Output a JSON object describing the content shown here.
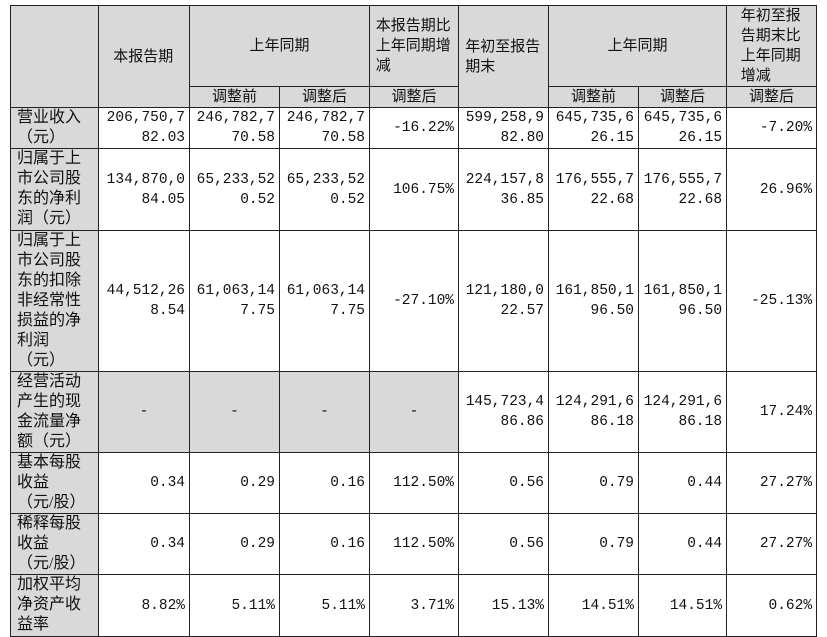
{
  "header": {
    "blank": "",
    "current_period": "本报告期",
    "prior_year_same_period": "上年同期",
    "change_vs_prior": "本报告期比上年同期增减",
    "ytd": "年初至报告期末",
    "prior_year_same_period_ytd": "上年同期",
    "ytd_change": "年初至报告期末比上年同期增减",
    "sub": [
      "调整前",
      "调整后",
      "调整后",
      "调整前",
      "调整后",
      "调整后"
    ]
  },
  "rows": [
    {
      "label": "营业收入（元）",
      "values": [
        "206,750,782.03",
        "246,782,770.58",
        "246,782,770.58",
        "-16.22%",
        "599,258,982.80",
        "645,735,626.15",
        "645,735,626.15",
        "-7.20%"
      ]
    },
    {
      "label": "归属于上市公司股东的净利润（元）",
      "values": [
        "134,870,084.05",
        "65,233,520.52",
        "65,233,520.52",
        "106.75%",
        "224,157,836.85",
        "176,555,722.68",
        "176,555,722.68",
        "26.96%"
      ]
    },
    {
      "label": "归属于上市公司股东的扣除非经常性损益的净利润（元）",
      "values": [
        "44,512,268.54",
        "61,063,147.75",
        "61,063,147.75",
        "-27.10%",
        "121,180,022.57",
        "161,850,196.50",
        "161,850,196.50",
        "-25.13%"
      ]
    },
    {
      "label": "经营活动产生的现金流量净额（元）",
      "values": [
        "-",
        "-",
        "-",
        "-",
        "145,723,486.86",
        "124,291,686.18",
        "124,291,686.18",
        "17.24%"
      ]
    },
    {
      "label": "基本每股收益（元/股）",
      "values": [
        "0.34",
        "0.29",
        "0.16",
        "112.50%",
        "0.56",
        "0.79",
        "0.44",
        "27.27%"
      ]
    },
    {
      "label": "稀释每股收益（元/股）",
      "values": [
        "0.34",
        "0.29",
        "0.16",
        "112.50%",
        "0.56",
        "0.79",
        "0.44",
        "27.27%"
      ]
    },
    {
      "label": "加权平均净资产收益率",
      "values": [
        "8.82%",
        "5.11%",
        "5.11%",
        "3.71%",
        "15.13%",
        "14.51%",
        "14.51%",
        "0.62%"
      ]
    }
  ],
  "colors": {
    "header_bg": "#d9d9d9",
    "border": "#222222"
  }
}
